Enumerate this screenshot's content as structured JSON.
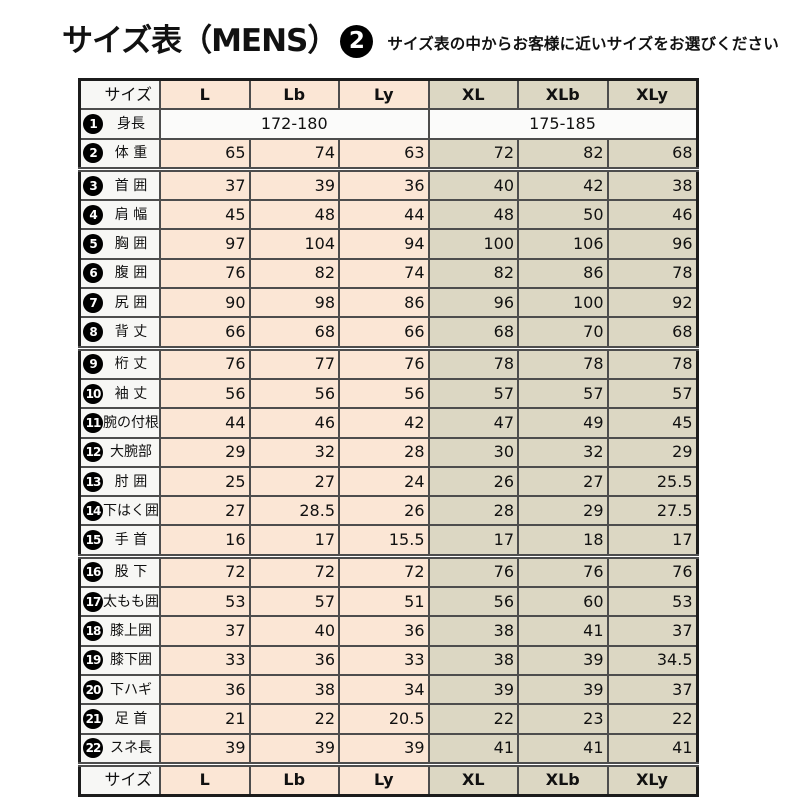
{
  "header": {
    "title": "サイズ表（MENS）",
    "badge": "2",
    "subtitle": "サイズ表の中からお客様に近いサイズをお選びください"
  },
  "table": {
    "corner_label": "サイズ",
    "columns": [
      "L",
      "Lb",
      "Ly",
      "XL",
      "XLb",
      "XLy"
    ],
    "column_groups": [
      "peach",
      "peach",
      "peach",
      "khaki",
      "khaki",
      "khaki"
    ],
    "height_row": {
      "num": "1",
      "label": "身長",
      "left_value": "172-180",
      "right_value": "175-185"
    },
    "rows": [
      {
        "num": "2",
        "label": "体 重",
        "values": [
          "65",
          "74",
          "63",
          "72",
          "82",
          "68"
        ]
      },
      {
        "num": "3",
        "label": "首 囲",
        "values": [
          "37",
          "39",
          "36",
          "40",
          "42",
          "38"
        ],
        "section_start": true
      },
      {
        "num": "4",
        "label": "肩 幅",
        "values": [
          "45",
          "48",
          "44",
          "48",
          "50",
          "46"
        ]
      },
      {
        "num": "5",
        "label": "胸 囲",
        "values": [
          "97",
          "104",
          "94",
          "100",
          "106",
          "96"
        ]
      },
      {
        "num": "6",
        "label": "腹 囲",
        "values": [
          "76",
          "82",
          "74",
          "82",
          "86",
          "78"
        ]
      },
      {
        "num": "7",
        "label": "尻 囲",
        "values": [
          "90",
          "98",
          "86",
          "96",
          "100",
          "92"
        ]
      },
      {
        "num": "8",
        "label": "背 丈",
        "values": [
          "66",
          "68",
          "66",
          "68",
          "70",
          "68"
        ]
      },
      {
        "num": "9",
        "label": "桁 丈",
        "values": [
          "76",
          "77",
          "76",
          "78",
          "78",
          "78"
        ],
        "section_start": true
      },
      {
        "num": "10",
        "label": "袖 丈",
        "values": [
          "56",
          "56",
          "56",
          "57",
          "57",
          "57"
        ]
      },
      {
        "num": "11",
        "label": "腕の付根",
        "values": [
          "44",
          "46",
          "42",
          "47",
          "49",
          "45"
        ]
      },
      {
        "num": "12",
        "label": "大腕部",
        "values": [
          "29",
          "32",
          "28",
          "30",
          "32",
          "29"
        ]
      },
      {
        "num": "13",
        "label": "肘 囲",
        "values": [
          "25",
          "27",
          "24",
          "26",
          "27",
          "25.5"
        ]
      },
      {
        "num": "14",
        "label": "下はく囲",
        "values": [
          "27",
          "28.5",
          "26",
          "28",
          "29",
          "27.5"
        ]
      },
      {
        "num": "15",
        "label": "手 首",
        "values": [
          "16",
          "17",
          "15.5",
          "17",
          "18",
          "17"
        ]
      },
      {
        "num": "16",
        "label": "股 下",
        "values": [
          "72",
          "72",
          "72",
          "76",
          "76",
          "76"
        ],
        "section_start": true
      },
      {
        "num": "17",
        "label": "太もも囲",
        "values": [
          "53",
          "57",
          "51",
          "56",
          "60",
          "53"
        ]
      },
      {
        "num": "18",
        "label": "膝上囲",
        "values": [
          "37",
          "40",
          "36",
          "38",
          "41",
          "37"
        ]
      },
      {
        "num": "19",
        "label": "膝下囲",
        "values": [
          "33",
          "36",
          "33",
          "38",
          "39",
          "34.5"
        ]
      },
      {
        "num": "20",
        "label": "下ハギ",
        "values": [
          "36",
          "38",
          "34",
          "39",
          "39",
          "37"
        ]
      },
      {
        "num": "21",
        "label": "足 首",
        "values": [
          "21",
          "22",
          "20.5",
          "22",
          "23",
          "22"
        ]
      },
      {
        "num": "22",
        "label": "スネ長",
        "values": [
          "39",
          "39",
          "39",
          "41",
          "41",
          "41"
        ]
      }
    ]
  },
  "colors": {
    "peach": "#fbe6d5",
    "khaki": "#dcd7c3",
    "label_bg": "#f7f7f5",
    "height_bg": "#fbfbfa",
    "grid": "#4d4d4d",
    "outer_border": "#1c1c1c",
    "badge_bg": "#000000"
  },
  "chart_data": {
    "type": "table",
    "title": "サイズ表（MENS）2",
    "subtitle": "サイズ表の中からお客様に近いサイズをお選びください",
    "columns": [
      "サイズ",
      "L",
      "Lb",
      "Ly",
      "XL",
      "XLb",
      "XLy"
    ],
    "rows": [
      [
        "1 身長",
        "172-180",
        "172-180",
        "172-180",
        "175-185",
        "175-185",
        "175-185"
      ],
      [
        "2 体重",
        65,
        74,
        63,
        72,
        82,
        68
      ],
      [
        "3 首囲",
        37,
        39,
        36,
        40,
        42,
        38
      ],
      [
        "4 肩幅",
        45,
        48,
        44,
        48,
        50,
        46
      ],
      [
        "5 胸囲",
        97,
        104,
        94,
        100,
        106,
        96
      ],
      [
        "6 腹囲",
        76,
        82,
        74,
        82,
        86,
        78
      ],
      [
        "7 尻囲",
        90,
        98,
        86,
        96,
        100,
        92
      ],
      [
        "8 背丈",
        66,
        68,
        66,
        68,
        70,
        68
      ],
      [
        "9 桁丈",
        76,
        77,
        76,
        78,
        78,
        78
      ],
      [
        "10 袖丈",
        56,
        56,
        56,
        57,
        57,
        57
      ],
      [
        "11 腕の付根",
        44,
        46,
        42,
        47,
        49,
        45
      ],
      [
        "12 大腕部",
        29,
        32,
        28,
        30,
        32,
        29
      ],
      [
        "13 肘囲",
        25,
        27,
        24,
        26,
        27,
        25.5
      ],
      [
        "14 下はく囲",
        27,
        28.5,
        26,
        28,
        29,
        27.5
      ],
      [
        "15 手首",
        16,
        17,
        15.5,
        17,
        18,
        17
      ],
      [
        "16 股下",
        72,
        72,
        72,
        76,
        76,
        76
      ],
      [
        "17 太もも囲",
        53,
        57,
        51,
        56,
        60,
        53
      ],
      [
        "18 膝上囲",
        37,
        40,
        36,
        38,
        41,
        37
      ],
      [
        "19 膝下囲",
        33,
        36,
        33,
        38,
        39,
        34.5
      ],
      [
        "20 下ハギ",
        36,
        38,
        34,
        39,
        39,
        37
      ],
      [
        "21 足首",
        21,
        22,
        20.5,
        22,
        23,
        22
      ],
      [
        "22 スネ長",
        39,
        39,
        39,
        41,
        41,
        41
      ]
    ]
  }
}
